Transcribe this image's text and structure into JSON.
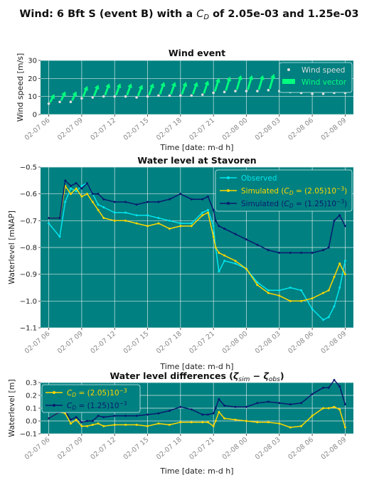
{
  "figure_title": {
    "prefix": "Wind: 6 Bft S (event B) with a ",
    "cd_symbol": "C",
    "cd_sub": "D",
    "suffix": " of 2.05e-03 and 1.25e-03"
  },
  "colors": {
    "panel_bg": "#008080",
    "grid": "#d8e8e8",
    "observed": "#00e5ee",
    "sim_205": "#ffd700",
    "sim_125": "#0a1a6e",
    "wind_speed_marker": "#dddddd",
    "wind_vector": "#00ff7f"
  },
  "chart_data": [
    {
      "type": "scatter",
      "title": "Wind event",
      "xlabel": "Time [date: m-d h]",
      "ylabel": "Wind speed [m/s]",
      "ylim": [
        0,
        30
      ],
      "yticks": [
        0,
        10,
        20,
        30
      ],
      "xlim": [
        -0.75,
        27.75
      ],
      "xticks": [
        0,
        3,
        6,
        9,
        12,
        15,
        18,
        21,
        24,
        27
      ],
      "xticklabels": [
        "02-07 06",
        "02-07 09",
        "02-07 12",
        "02-07 15",
        "02-07 18",
        "02-07 21",
        "02-08 00",
        "02-08 03",
        "02-08 06",
        "02-08 09"
      ],
      "legend": [
        "Wind speed",
        "Wind vector"
      ],
      "legend_loc": "upper right",
      "grid": true,
      "series": [
        {
          "name": "Wind speed",
          "x": [
            0,
            1,
            2,
            3,
            4,
            5,
            6,
            7,
            8,
            9,
            10,
            11,
            12,
            13,
            14,
            15,
            16,
            17,
            18,
            19,
            20,
            21,
            22,
            23,
            24,
            25,
            26,
            27
          ],
          "values": [
            6,
            7,
            7,
            9,
            9.5,
            10,
            10,
            10,
            9.5,
            10,
            10.5,
            10.5,
            10.5,
            10.5,
            11,
            12,
            12.5,
            13,
            13,
            13,
            13.5,
            13,
            12.5,
            12,
            11.5,
            11.5,
            12,
            12
          ]
        },
        {
          "name": "Wind vector",
          "x": [
            0,
            1,
            2,
            3,
            4,
            5,
            6,
            7,
            8,
            9,
            10,
            11,
            12,
            13,
            14,
            15,
            16,
            17,
            18,
            19,
            20,
            21,
            22,
            23,
            24,
            25,
            26,
            27
          ],
          "values": [
            6,
            7,
            7,
            9,
            9.5,
            10,
            10,
            10,
            9.5,
            10,
            10.5,
            10.5,
            10.5,
            10.5,
            11,
            12,
            12.5,
            13,
            13,
            13,
            13.5,
            13,
            12.5,
            12,
            11.5,
            11.5,
            12,
            12
          ]
        }
      ]
    },
    {
      "type": "line",
      "title": "Water level at Stavoren",
      "xlabel": "Time [date: m-d h]",
      "ylabel": "Waterlevel [mNAP]",
      "ylim": [
        -1.1,
        -0.5
      ],
      "yticks": [
        -1.1,
        -1.0,
        -0.9,
        -0.8,
        -0.7,
        -0.6,
        -0.5
      ],
      "yticklabels": [
        "−1.1",
        "−1.0",
        "−0.9",
        "−0.8",
        "−0.7",
        "−0.6",
        "−0.5"
      ],
      "xlim": [
        -0.75,
        27.75
      ],
      "xticks": [
        0,
        3,
        6,
        9,
        12,
        15,
        18,
        21,
        24,
        27
      ],
      "xticklabels": [
        "02-07 06",
        "02-07 09",
        "02-07 12",
        "02-07 15",
        "02-07 18",
        "02-07 21",
        "02-08 00",
        "02-08 03",
        "02-08 06",
        "02-08 09"
      ],
      "legend_loc": "upper right",
      "grid": true,
      "series": [
        {
          "name": "Observed",
          "x": [
            0,
            1,
            1.5,
            2,
            2.5,
            3,
            3.5,
            4,
            4.5,
            5,
            6,
            7,
            8,
            9,
            10,
            11,
            12,
            13,
            14,
            14.5,
            15,
            15.2,
            15.5,
            16,
            17,
            18,
            19,
            20,
            21,
            22,
            23,
            24,
            25,
            25.5,
            26,
            26.5,
            27
          ],
          "values": [
            -0.71,
            -0.76,
            -0.63,
            -0.58,
            -0.59,
            -0.57,
            -0.56,
            -0.6,
            -0.64,
            -0.65,
            -0.67,
            -0.67,
            -0.68,
            -0.68,
            -0.69,
            -0.7,
            -0.71,
            -0.71,
            -0.67,
            -0.66,
            -0.72,
            -0.8,
            -0.89,
            -0.85,
            -0.86,
            -0.88,
            -0.93,
            -0.96,
            -0.96,
            -0.95,
            -0.96,
            -1.03,
            -1.07,
            -1.06,
            -1.02,
            -0.95,
            -0.85
          ]
        },
        {
          "name_prefix": "Simulated (",
          "name_sym": "C",
          "name_sub": "D",
          "name_suffix": " = (2.05)10",
          "name_exp": "−3",
          "name_close": ")",
          "x": [
            0,
            1,
            1.5,
            2,
            2.5,
            3,
            3.5,
            4,
            4.5,
            5,
            6,
            7,
            8,
            9,
            10,
            11,
            12,
            13,
            14,
            14.5,
            15,
            15.2,
            15.5,
            16,
            17,
            18,
            19,
            20,
            21,
            22,
            23,
            24,
            25,
            25.5,
            26,
            26.5,
            27
          ],
          "values": [
            -0.69,
            -0.69,
            -0.57,
            -0.6,
            -0.58,
            -0.61,
            -0.6,
            -0.63,
            -0.66,
            -0.69,
            -0.7,
            -0.7,
            -0.71,
            -0.72,
            -0.71,
            -0.73,
            -0.72,
            -0.72,
            -0.68,
            -0.67,
            -0.76,
            -0.8,
            -0.82,
            -0.83,
            -0.85,
            -0.88,
            -0.94,
            -0.97,
            -0.98,
            -1.0,
            -1.0,
            -0.99,
            -0.97,
            -0.96,
            -0.91,
            -0.86,
            -0.9
          ]
        },
        {
          "name_prefix": "Simulated (",
          "name_sym": "C",
          "name_sub": "D",
          "name_suffix": " = (1.25)10",
          "name_exp": "−3",
          "name_close": ")",
          "x": [
            0,
            1,
            1.5,
            2,
            2.5,
            3,
            3.5,
            4,
            4.5,
            5,
            6,
            7,
            8,
            9,
            10,
            11,
            12,
            13,
            14,
            14.5,
            15,
            15.2,
            15.5,
            16,
            17,
            18,
            19,
            20,
            21,
            22,
            23,
            24,
            25,
            25.5,
            26,
            26.5,
            27
          ],
          "values": [
            -0.69,
            -0.69,
            -0.55,
            -0.57,
            -0.56,
            -0.58,
            -0.56,
            -0.6,
            -0.6,
            -0.62,
            -0.63,
            -0.63,
            -0.64,
            -0.63,
            -0.63,
            -0.62,
            -0.6,
            -0.62,
            -0.62,
            -0.61,
            -0.66,
            -0.7,
            -0.72,
            -0.73,
            -0.75,
            -0.77,
            -0.79,
            -0.81,
            -0.82,
            -0.82,
            -0.82,
            -0.82,
            -0.81,
            -0.8,
            -0.7,
            -0.68,
            -0.72
          ]
        }
      ]
    },
    {
      "type": "line",
      "title_prefix": "Water level differences (",
      "title_zeta": "ζ",
      "title_sub_sim": "sim",
      "title_minus": " − ",
      "title_sub_obs": "obs",
      "title_close": ")",
      "xlabel": "Time [date: m-d h]",
      "ylabel": "Waterlevel [m]",
      "ylim": [
        -0.1,
        0.3
      ],
      "yticks": [
        -0.1,
        0.0,
        0.1,
        0.2,
        0.3
      ],
      "yticklabels": [
        "−0.1",
        "0.0",
        "0.1",
        "0.2",
        "0.3"
      ],
      "xlim": [
        -0.75,
        27.75
      ],
      "xticks": [
        0,
        3,
        6,
        9,
        12,
        15,
        18,
        21,
        24,
        27
      ],
      "xticklabels": [
        "02-07 06",
        "02-07 09",
        "02-07 12",
        "02-07 15",
        "02-07 18",
        "02-07 21",
        "02-08 00",
        "02-08 03",
        "02-08 06",
        "02-08 09"
      ],
      "legend_loc": "upper left",
      "grid": true,
      "series": [
        {
          "name_sym": "C",
          "name_sub": "D",
          "name_suffix": " = (2.05)10",
          "name_exp": "−3",
          "x": [
            0,
            1,
            1.5,
            2,
            2.5,
            3,
            3.5,
            4,
            4.5,
            5,
            6,
            7,
            8,
            9,
            10,
            11,
            12,
            13,
            14,
            14.5,
            15,
            15.2,
            15.5,
            16,
            17,
            18,
            19,
            20,
            21,
            22,
            23,
            24,
            25,
            25.5,
            26,
            26.5,
            27
          ],
          "values": [
            0.02,
            0.07,
            0.06,
            -0.02,
            0.01,
            -0.04,
            -0.04,
            -0.03,
            -0.02,
            -0.04,
            -0.03,
            -0.03,
            -0.03,
            -0.04,
            -0.02,
            -0.03,
            -0.01,
            -0.01,
            -0.01,
            -0.01,
            -0.04,
            0.0,
            0.07,
            0.02,
            0.01,
            0.0,
            -0.01,
            -0.01,
            -0.02,
            -0.05,
            -0.04,
            0.04,
            0.1,
            0.1,
            0.11,
            0.09,
            -0.05
          ]
        },
        {
          "name_sym": "C",
          "name_sub": "D",
          "name_suffix": " = (1.25)10",
          "name_exp": "−3",
          "x": [
            0,
            1,
            1.5,
            2,
            2.5,
            3,
            3.5,
            4,
            4.5,
            5,
            6,
            7,
            8,
            9,
            10,
            11,
            12,
            13,
            14,
            14.5,
            15,
            15.2,
            15.5,
            16,
            17,
            18,
            19,
            20,
            21,
            22,
            23,
            24,
            25,
            25.5,
            26,
            26.5,
            27
          ],
          "values": [
            0.02,
            0.07,
            0.08,
            0.01,
            0.03,
            -0.01,
            0.0,
            0.0,
            0.04,
            0.03,
            0.04,
            0.04,
            0.04,
            0.05,
            0.06,
            0.08,
            0.11,
            0.09,
            0.05,
            0.05,
            0.06,
            0.1,
            0.17,
            0.12,
            0.11,
            0.11,
            0.14,
            0.15,
            0.14,
            0.13,
            0.14,
            0.21,
            0.26,
            0.26,
            0.32,
            0.27,
            0.13
          ]
        }
      ]
    }
  ]
}
